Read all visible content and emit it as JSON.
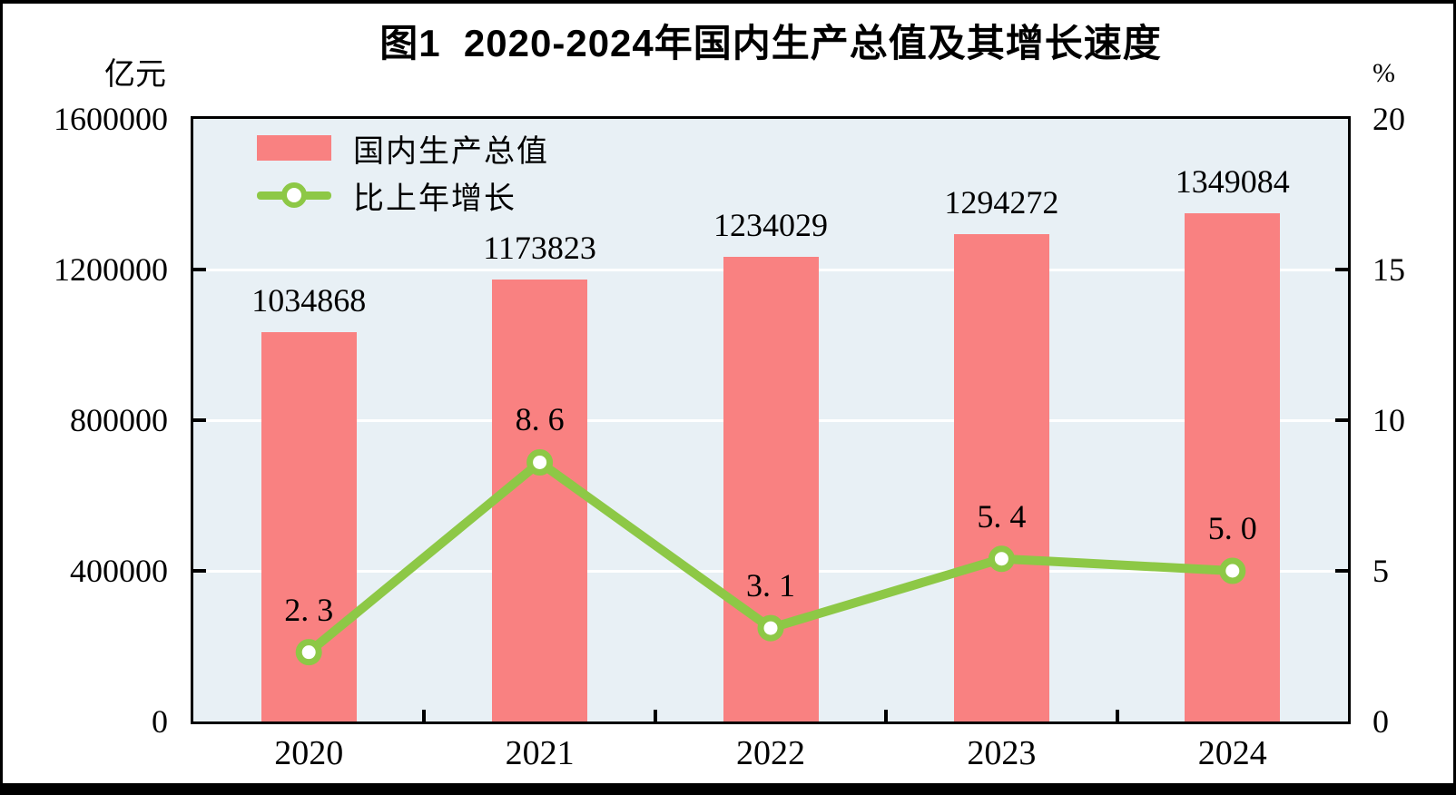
{
  "title": "图1  2020-2024年国内生产总值及其增长速度",
  "left_axis": {
    "unit": "亿元",
    "max": 1600000,
    "tick_step": 400000,
    "tick_labels": [
      "1600000",
      "1200000",
      "800000",
      "400000",
      "0"
    ]
  },
  "right_axis": {
    "unit": "%",
    "max": 20,
    "tick_step": 5,
    "tick_labels": [
      "20",
      "15",
      "10",
      "5",
      "0"
    ]
  },
  "legend": {
    "items": [
      {
        "label": "国内生产总值",
        "type": "bar"
      },
      {
        "label": "比上年增长",
        "type": "line"
      }
    ],
    "position": "top-left-inside"
  },
  "chart_data": {
    "type": "bar+line",
    "categories": [
      "2020",
      "2021",
      "2022",
      "2023",
      "2024"
    ],
    "series": [
      {
        "name": "国内生产总值",
        "type": "bar",
        "axis": "left",
        "values": [
          1034868,
          1173823,
          1234029,
          1294272,
          1349084
        ],
        "value_labels": [
          "1034868",
          "1173823",
          "1234029",
          "1294272",
          "1349084"
        ]
      },
      {
        "name": "比上年增长",
        "type": "line",
        "axis": "right",
        "values": [
          2.3,
          8.6,
          3.1,
          5.4,
          5.0
        ],
        "value_labels": [
          "2. 3",
          "8. 6",
          "3. 1",
          "5. 4",
          "5. 0"
        ]
      }
    ],
    "title": "图1  2020-2024年国内生产总值及其增长速度",
    "xlabel": "",
    "ylabel_left": "亿元",
    "ylabel_right": "%",
    "ylim_left": [
      0,
      1600000
    ],
    "ylim_right": [
      0,
      20
    ],
    "grid": "horizontal-white"
  },
  "colors": {
    "bar": "#F98181",
    "line": "#8DC846",
    "marker_fill": "#FFFFFF",
    "plot_background": "#E8F0F5",
    "gridline": "#FFFFFF",
    "axis": "#000000",
    "text": "#000000",
    "page_background": "#FFFFFF",
    "frame": "#000000"
  }
}
